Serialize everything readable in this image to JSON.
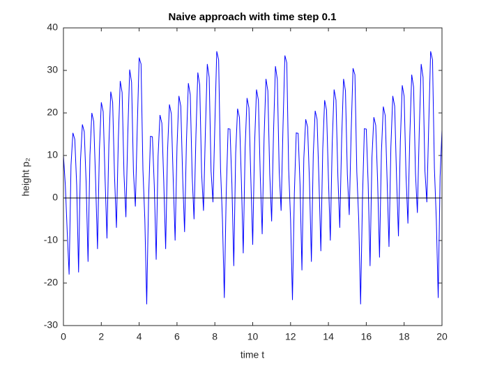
{
  "chart_data": {
    "type": "line",
    "title": "Naive approach with time step 0.1",
    "xlabel": "time t",
    "ylabel": "height p₂",
    "x": [
      0,
      0.1,
      0.2,
      0.3,
      0.4,
      0.5,
      0.6,
      0.7,
      0.8,
      0.9,
      1,
      1.1,
      1.2,
      1.3,
      1.4,
      1.5,
      1.6,
      1.7,
      1.8,
      1.9,
      2,
      2.1,
      2.2,
      2.3,
      2.4,
      2.5,
      2.6,
      2.7,
      2.8,
      2.9,
      3,
      3.1,
      3.2,
      3.3,
      3.4,
      3.5,
      3.6,
      3.7,
      3.8,
      3.9,
      4,
      4.1,
      4.2,
      4.3,
      4.4,
      4.5,
      4.6,
      4.7,
      4.8,
      4.9,
      5,
      5.1,
      5.2,
      5.3,
      5.4,
      5.5,
      5.6,
      5.7,
      5.8,
      5.9,
      6,
      6.1,
      6.2,
      6.3,
      6.4,
      6.5,
      6.6,
      6.7,
      6.8,
      6.9,
      7,
      7.1,
      7.2,
      7.3,
      7.4,
      7.5,
      7.6,
      7.7,
      7.8,
      7.9,
      8,
      8.1,
      8.2,
      8.3,
      8.4,
      8.5,
      8.6,
      8.7,
      8.8,
      8.9,
      9,
      9.1,
      9.2,
      9.3,
      9.4,
      9.5,
      9.6,
      9.7,
      9.8,
      9.9,
      10,
      10.1,
      10.2,
      10.3,
      10.4,
      10.5,
      10.6,
      10.7,
      10.8,
      10.9,
      11,
      11.1,
      11.2,
      11.3,
      11.4,
      11.5,
      11.6,
      11.7,
      11.8,
      11.9,
      12,
      12.1,
      12.2,
      12.3,
      12.4,
      12.5,
      12.6,
      12.7,
      12.8,
      12.9,
      13,
      13.1,
      13.2,
      13.3,
      13.4,
      13.5,
      13.6,
      13.7,
      13.8,
      13.9,
      14,
      14.1,
      14.2,
      14.3,
      14.4,
      14.5,
      14.6,
      14.7,
      14.8,
      14.9,
      15,
      15.1,
      15.2,
      15.3,
      15.4,
      15.5,
      15.6,
      15.7,
      15.8,
      15.9,
      16,
      16.1,
      16.2,
      16.3,
      16.4,
      16.5,
      16.6,
      16.7,
      16.8,
      16.9,
      17,
      17.1,
      17.2,
      17.3,
      17.4,
      17.5,
      17.6,
      17.7,
      17.8,
      17.9,
      18,
      18.1,
      18.2,
      18.3,
      18.4,
      18.5,
      18.6,
      18.7,
      18.8,
      18.9,
      19,
      19.1,
      19.2,
      19.3,
      19.4,
      19.5,
      19.6,
      19.7,
      19.8,
      19.9,
      20
    ],
    "series": [
      {
        "color": "#0000ff",
        "values": [
          10,
          3,
          -8,
          -18,
          7.7,
          15.3,
          13.8,
          3,
          -17.5,
          8.7,
          17.3,
          15.6,
          3.5,
          -15,
          10,
          20,
          18,
          4,
          -12,
          11.3,
          22.5,
          20.3,
          4.5,
          -9.5,
          12.5,
          25,
          22.5,
          5,
          -7,
          13.8,
          27.5,
          24.8,
          5.5,
          -4.5,
          15.1,
          30.2,
          27.2,
          6,
          -2,
          16.5,
          33,
          31.5,
          6.6,
          -5,
          -25,
          0,
          14.5,
          14.4,
          2.9,
          -14.5,
          9.8,
          19.5,
          17.6,
          3.9,
          -12,
          11,
          22,
          19.8,
          4.4,
          -10,
          12,
          24,
          21.6,
          4.8,
          -8,
          13.5,
          27,
          24.3,
          5.4,
          -5,
          14.8,
          29.5,
          26.6,
          5.9,
          -3,
          15.8,
          31.5,
          28.4,
          6.3,
          -1,
          17.3,
          34.5,
          32.5,
          6.9,
          -5,
          -23.5,
          1,
          16.3,
          16.2,
          3.3,
          -16,
          10.5,
          21,
          18.9,
          4.2,
          -13,
          11.8,
          23.5,
          21.2,
          4.7,
          -11,
          12.8,
          25.5,
          23,
          5.1,
          -8.5,
          14,
          28,
          25.2,
          5.6,
          -5.5,
          15.5,
          31,
          27.9,
          6.2,
          -3,
          16.8,
          33.5,
          31.8,
          6.7,
          -5,
          -24,
          1,
          15.3,
          15.2,
          3.1,
          -17,
          9.3,
          18.5,
          16.7,
          3.7,
          -15,
          10.3,
          20.5,
          18.5,
          4.1,
          -12.5,
          11.5,
          23,
          20.7,
          4.6,
          -10,
          12.8,
          25.5,
          23,
          5.1,
          -7,
          14,
          28,
          25.2,
          5.6,
          -4,
          15.3,
          30.5,
          29,
          6.1,
          -5,
          -25,
          0,
          16.3,
          16.2,
          3.3,
          -16,
          9.5,
          19,
          17.1,
          3.8,
          -14,
          10.8,
          21.5,
          19.4,
          4.3,
          -11.5,
          12,
          24,
          21.6,
          4.8,
          -9,
          13.3,
          26.5,
          23.9,
          5.3,
          -6,
          14.5,
          29,
          26.1,
          5.8,
          -3.5,
          15.8,
          31.5,
          28.4,
          6.3,
          -1,
          17.3,
          34.5,
          32.5,
          6.9,
          -5,
          -23.5,
          5,
          16
        ]
      }
    ],
    "hline": {
      "y": 0,
      "color": "#000000"
    },
    "xlim": [
      0,
      20
    ],
    "xticks": [
      0,
      2,
      4,
      6,
      8,
      10,
      12,
      14,
      16,
      18,
      20
    ],
    "ylim": [
      -30,
      40
    ],
    "yticks": [
      -30,
      -20,
      -10,
      0,
      10,
      20,
      30,
      40
    ]
  }
}
